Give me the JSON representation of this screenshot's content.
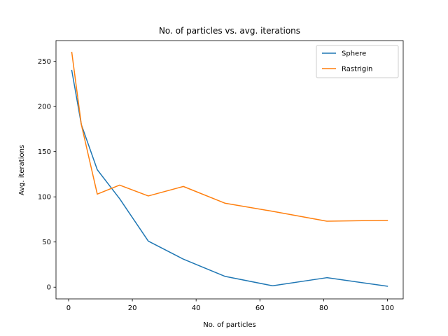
{
  "chart_data": {
    "type": "line",
    "title": "No. of particles vs. avg. iterations",
    "xlabel": "No. of particles",
    "ylabel": "Avg. iterations",
    "xlim": [
      -3.95,
      104.95
    ],
    "ylim": [
      -13,
      273
    ],
    "xticks": [
      0,
      20,
      40,
      60,
      80,
      100
    ],
    "yticks": [
      0,
      50,
      100,
      150,
      200,
      250
    ],
    "grid": false,
    "legend_position": "top-right",
    "series": [
      {
        "name": "Sphere",
        "color": "#1f77b4",
        "x": [
          1,
          4,
          9,
          16,
          25,
          36,
          49,
          64,
          81,
          100
        ],
        "y": [
          240,
          180,
          130,
          98,
          51,
          31,
          12,
          1.5,
          10.5,
          1
        ]
      },
      {
        "name": "Rastrigin",
        "color": "#ff7f0e",
        "x": [
          1,
          4,
          9,
          16,
          25,
          36,
          49,
          64,
          81,
          100
        ],
        "y": [
          260,
          180,
          103,
          113,
          101,
          111.5,
          93,
          84,
          73,
          74
        ]
      }
    ]
  }
}
